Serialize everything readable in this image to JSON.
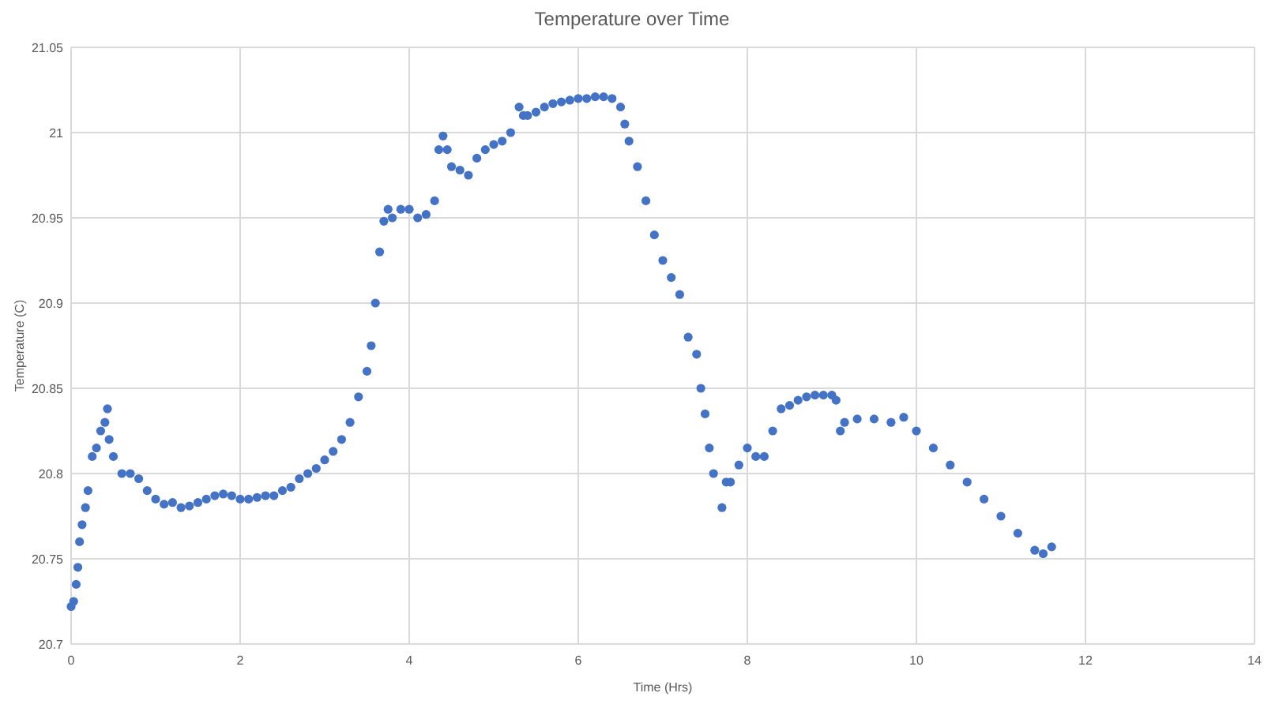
{
  "chart_data": {
    "type": "scatter",
    "title": "Temperature over Time",
    "xlabel": "Time (Hrs)",
    "ylabel": "Temperature (C)",
    "marker": "circle",
    "grid": true,
    "xlim": [
      0,
      14
    ],
    "xticks": [
      0,
      2,
      4,
      6,
      8,
      10,
      12,
      14
    ],
    "ylim": [
      20.7,
      21.05
    ],
    "yticks": [
      20.7,
      20.75,
      20.8,
      20.85,
      20.9,
      20.95,
      21,
      21.05
    ],
    "series": [
      {
        "color": "#4472c4",
        "x": [
          0,
          0.03,
          0.06,
          0.08,
          0.1,
          0.13,
          0.17,
          0.2,
          0.25,
          0.3,
          0.35,
          0.4,
          0.43,
          0.45,
          0.5,
          0.6,
          0.7,
          0.8,
          0.9,
          1.0,
          1.1,
          1.2,
          1.3,
          1.4,
          1.5,
          1.6,
          1.7,
          1.8,
          1.9,
          2.0,
          2.1,
          2.2,
          2.3,
          2.4,
          2.5,
          2.6,
          2.7,
          2.8,
          2.9,
          3.0,
          3.1,
          3.2,
          3.3,
          3.4,
          3.5,
          3.55,
          3.6,
          3.65,
          3.7,
          3.75,
          3.8,
          3.9,
          4.0,
          4.1,
          4.2,
          4.3,
          4.35,
          4.4,
          4.45,
          4.5,
          4.6,
          4.7,
          4.8,
          4.9,
          5.0,
          5.1,
          5.2,
          5.3,
          5.35,
          5.4,
          5.5,
          5.6,
          5.7,
          5.8,
          5.9,
          6.0,
          6.1,
          6.2,
          6.3,
          6.4,
          6.5,
          6.55,
          6.6,
          6.7,
          6.8,
          6.9,
          7.0,
          7.1,
          7.2,
          7.3,
          7.4,
          7.45,
          7.5,
          7.55,
          7.6,
          7.7,
          7.75,
          7.8,
          7.9,
          8.0,
          8.1,
          8.2,
          8.3,
          8.4,
          8.5,
          8.6,
          8.7,
          8.8,
          8.9,
          9.0,
          9.05,
          9.1,
          9.15,
          9.3,
          9.5,
          9.7,
          9.85,
          10.0,
          10.2,
          10.4,
          10.6,
          10.8,
          11.0,
          11.2,
          11.4,
          11.5,
          11.6
        ],
        "values": [
          20.722,
          20.725,
          20.735,
          20.745,
          20.76,
          20.77,
          20.78,
          20.79,
          20.81,
          20.815,
          20.825,
          20.83,
          20.838,
          20.82,
          20.81,
          20.8,
          20.8,
          20.797,
          20.79,
          20.785,
          20.782,
          20.783,
          20.78,
          20.781,
          20.783,
          20.785,
          20.787,
          20.788,
          20.787,
          20.785,
          20.785,
          20.786,
          20.787,
          20.787,
          20.79,
          20.792,
          20.797,
          20.8,
          20.803,
          20.808,
          20.813,
          20.82,
          20.83,
          20.845,
          20.86,
          20.875,
          20.9,
          20.93,
          20.948,
          20.955,
          20.95,
          20.955,
          20.955,
          20.95,
          20.952,
          20.96,
          20.99,
          20.998,
          20.99,
          20.98,
          20.978,
          20.975,
          20.985,
          20.99,
          20.993,
          20.995,
          21.0,
          21.015,
          21.01,
          21.01,
          21.012,
          21.015,
          21.017,
          21.018,
          21.019,
          21.02,
          21.02,
          21.021,
          21.021,
          21.02,
          21.015,
          21.005,
          20.995,
          20.98,
          20.96,
          20.94,
          20.925,
          20.915,
          20.905,
          20.88,
          20.87,
          20.85,
          20.835,
          20.815,
          20.8,
          20.78,
          20.795,
          20.795,
          20.805,
          20.815,
          20.81,
          20.81,
          20.825,
          20.838,
          20.84,
          20.843,
          20.845,
          20.846,
          20.846,
          20.846,
          20.843,
          20.825,
          20.83,
          20.832,
          20.832,
          20.83,
          20.833,
          20.825,
          20.815,
          20.805,
          20.795,
          20.785,
          20.775,
          20.765,
          20.755,
          20.753,
          20.757
        ]
      }
    ]
  }
}
